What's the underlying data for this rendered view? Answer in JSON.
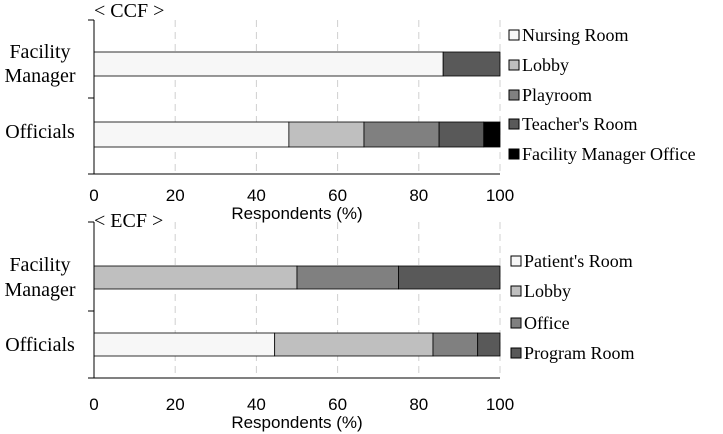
{
  "chart_data": [
    {
      "type": "bar",
      "orientation": "horizontal",
      "stacked": true,
      "title": "< CCF >",
      "xlabel": "Respondents (%)",
      "xlim": [
        0,
        100
      ],
      "xticks": [
        "0",
        "20",
        "40",
        "60",
        "80",
        "100"
      ],
      "grid": "vertical dashed",
      "legend_position": "right",
      "categories": [
        "Facility\nManager",
        "Officials"
      ],
      "series": [
        {
          "name": "Nursing Room",
          "color": "#f7f7f7",
          "values": [
            86,
            48
          ]
        },
        {
          "name": "Lobby",
          "color": "#bfbfbf",
          "values": [
            0,
            18.5
          ]
        },
        {
          "name": "Playroom",
          "color": "#808080",
          "values": [
            0,
            18.5
          ]
        },
        {
          "name": "Teacher's Room",
          "color": "#595959",
          "values": [
            14,
            11
          ]
        },
        {
          "name": "Facility Manager Office",
          "color": "#000000",
          "values": [
            0,
            4
          ]
        }
      ]
    },
    {
      "type": "bar",
      "orientation": "horizontal",
      "stacked": true,
      "title": "< ECF >",
      "xlabel": "Respondents (%)",
      "xlim": [
        0,
        100
      ],
      "xticks": [
        "0",
        "20",
        "40",
        "60",
        "80",
        "100"
      ],
      "grid": "vertical dashed",
      "legend_position": "right",
      "categories": [
        "Facility\nManager",
        "Officials"
      ],
      "series": [
        {
          "name": "Patient's Room",
          "color": "#f7f7f7",
          "values": [
            0,
            44.5
          ]
        },
        {
          "name": "Lobby",
          "color": "#bfbfbf",
          "values": [
            50,
            39
          ]
        },
        {
          "name": "Office",
          "color": "#808080",
          "values": [
            25,
            11
          ]
        },
        {
          "name": "Program Room",
          "color": "#595959",
          "values": [
            25,
            5.5
          ]
        }
      ]
    }
  ]
}
